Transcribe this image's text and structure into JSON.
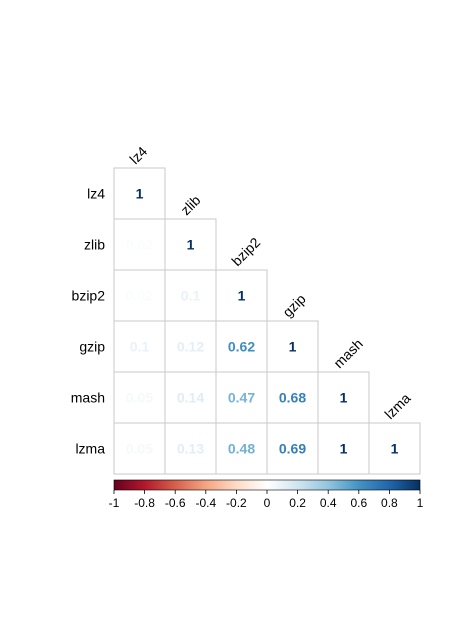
{
  "chart_data": {
    "type": "heatmap",
    "title": "",
    "layout": "lower-triangle",
    "variables": [
      "lz4",
      "zlib",
      "bzip2",
      "gzip",
      "mash",
      "lzma"
    ],
    "matrix": [
      [
        1
      ],
      [
        0.02,
        1
      ],
      [
        0.02,
        0.1,
        1
      ],
      [
        0.1,
        0.12,
        0.62,
        1
      ],
      [
        0.05,
        0.14,
        0.47,
        0.68,
        1
      ],
      [
        0.05,
        0.13,
        0.48,
        0.69,
        1,
        1
      ]
    ],
    "cell_labels": [
      [
        "1"
      ],
      [
        "0.02",
        "1"
      ],
      [
        "0.02",
        "0.1",
        "1"
      ],
      [
        "0.1",
        "0.12",
        "0.62",
        "1"
      ],
      [
        "0.05",
        "0.14",
        "0.47",
        "0.68",
        "1"
      ],
      [
        "0.05",
        "0.13",
        "0.48",
        "0.69",
        "1",
        "1"
      ]
    ],
    "colorbar": {
      "range": [
        -1,
        1
      ],
      "ticks": [
        "-1",
        "-0.8",
        "-0.6",
        "-0.4",
        "-0.2",
        "0",
        "0.2",
        "0.4",
        "0.6",
        "0.8",
        "1"
      ],
      "palette": [
        "#67001F",
        "#B2182B",
        "#D6604D",
        "#F4A582",
        "#FDDBC7",
        "#FFFFFF",
        "#D1E5F0",
        "#92C5DE",
        "#4393C3",
        "#2166AC",
        "#053061"
      ]
    },
    "grid_color": "#c8c8c8",
    "grid": true,
    "legend_position": "bottom"
  }
}
